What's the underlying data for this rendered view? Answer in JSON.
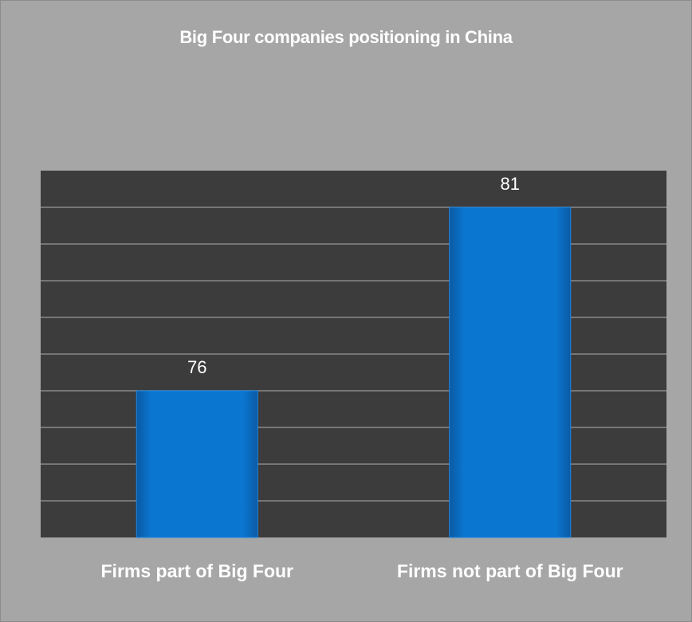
{
  "chart_data": {
    "type": "bar",
    "title": "Big Four companies positioning in China",
    "categories": [
      "Firms part of Big Four",
      "Firms not part of  Big Four"
    ],
    "values": [
      76,
      81
    ],
    "data_labels": [
      "76",
      "81"
    ],
    "xlabel": "",
    "ylabel": "",
    "ylim": [
      72,
      82
    ],
    "grid": true,
    "legend": "none",
    "colors": {
      "bar": "#0673c9",
      "plot_background": "#3c3c3c",
      "chart_background": "#a6a6a6",
      "gridline": "#8a8a8a",
      "text": "#ffffff"
    }
  }
}
